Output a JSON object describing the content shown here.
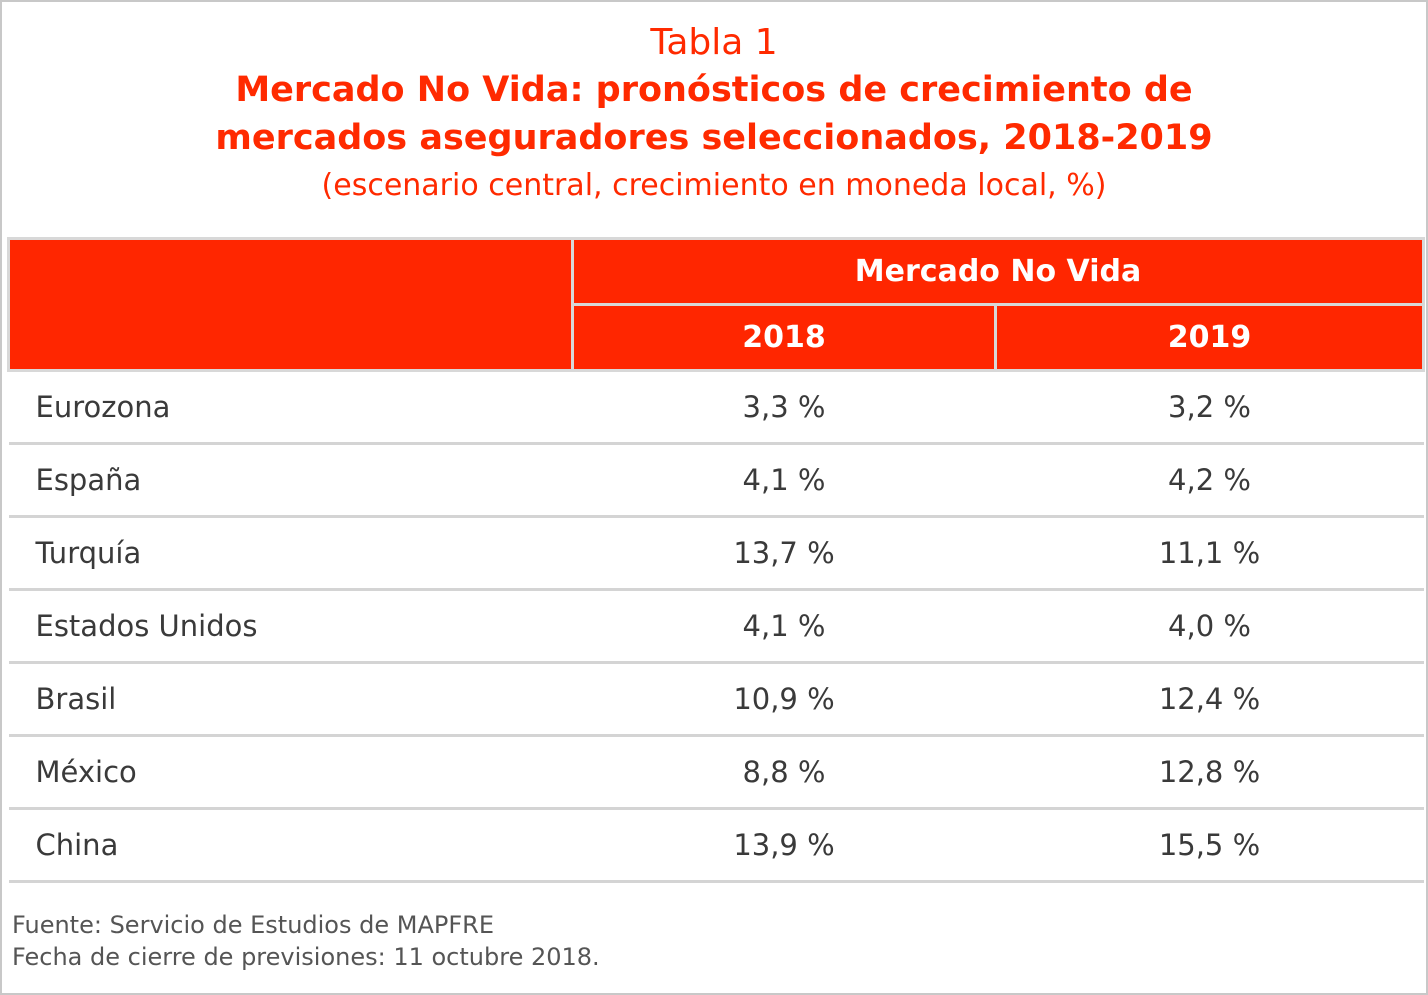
{
  "title": {
    "label": "Tabla 1",
    "line1": "Mercado No Vida: pronósticos de crecimiento de",
    "line2": "mercados aseguradores seleccionados, 2018-2019",
    "subtitle": "(escenario central, crecimiento en moneda local, %)"
  },
  "table": {
    "group_header": "Mercado No Vida",
    "years": [
      "2018",
      "2019"
    ],
    "rows": [
      {
        "name": "Eurozona",
        "v2018": "3,3 %",
        "v2019": "3,2 %"
      },
      {
        "name": "España",
        "v2018": "4,1 %",
        "v2019": "4,2 %"
      },
      {
        "name": "Turquía",
        "v2018": "13,7 %",
        "v2019": "11,1 %"
      },
      {
        "name": "Estados Unidos",
        "v2018": "4,1 %",
        "v2019": "4,0 %"
      },
      {
        "name": "Brasil",
        "v2018": "10,9 %",
        "v2019": "12,4 %"
      },
      {
        "name": "México",
        "v2018": "8,8 %",
        "v2019": "12,8 %"
      },
      {
        "name": "China",
        "v2018": "13,9 %",
        "v2019": "15,5 %"
      }
    ]
  },
  "notes": {
    "source": "Fuente: Servicio de Estudios de MAPFRE",
    "date": "Fecha de cierre de previsiones: 11 octubre 2018."
  },
  "colors": {
    "accent": "#ff2600",
    "title_text": "#ff2a00",
    "body_text": "#3a3a3a",
    "rule": "#d4d4d4"
  }
}
